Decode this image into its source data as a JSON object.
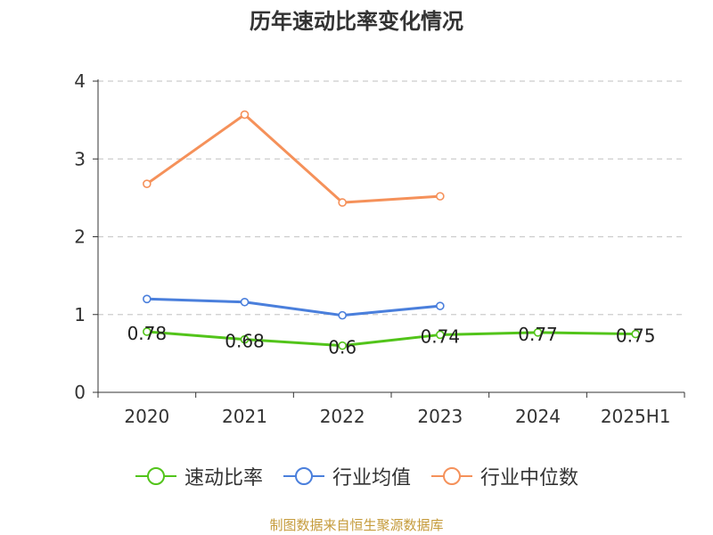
{
  "chart_data": {
    "type": "line",
    "title": "历年速动比率变化情况",
    "categories": [
      "2020",
      "2021",
      "2022",
      "2023",
      "2024",
      "2025H1"
    ],
    "ylim": [
      0,
      4
    ],
    "yticks": [
      "0",
      "1",
      "2",
      "3",
      "4"
    ],
    "grid": true,
    "legend_position": "bottom",
    "series": [
      {
        "name": "速动比率",
        "color": "#52c41a",
        "values": [
          0.78,
          0.68,
          0.6,
          0.74,
          0.77,
          0.75
        ],
        "labels": [
          "0.78",
          "0.68",
          "0.6",
          "0.74",
          "0.77",
          "0.75"
        ]
      },
      {
        "name": "行业均值",
        "color": "#4a7fdc",
        "values": [
          1.2,
          1.16,
          0.99,
          1.11,
          null,
          null
        ]
      },
      {
        "name": "行业中位数",
        "color": "#f5915a",
        "values": [
          2.68,
          3.57,
          2.44,
          2.52,
          null,
          null
        ]
      }
    ]
  },
  "source": "制图数据来自恒生聚源数据库"
}
